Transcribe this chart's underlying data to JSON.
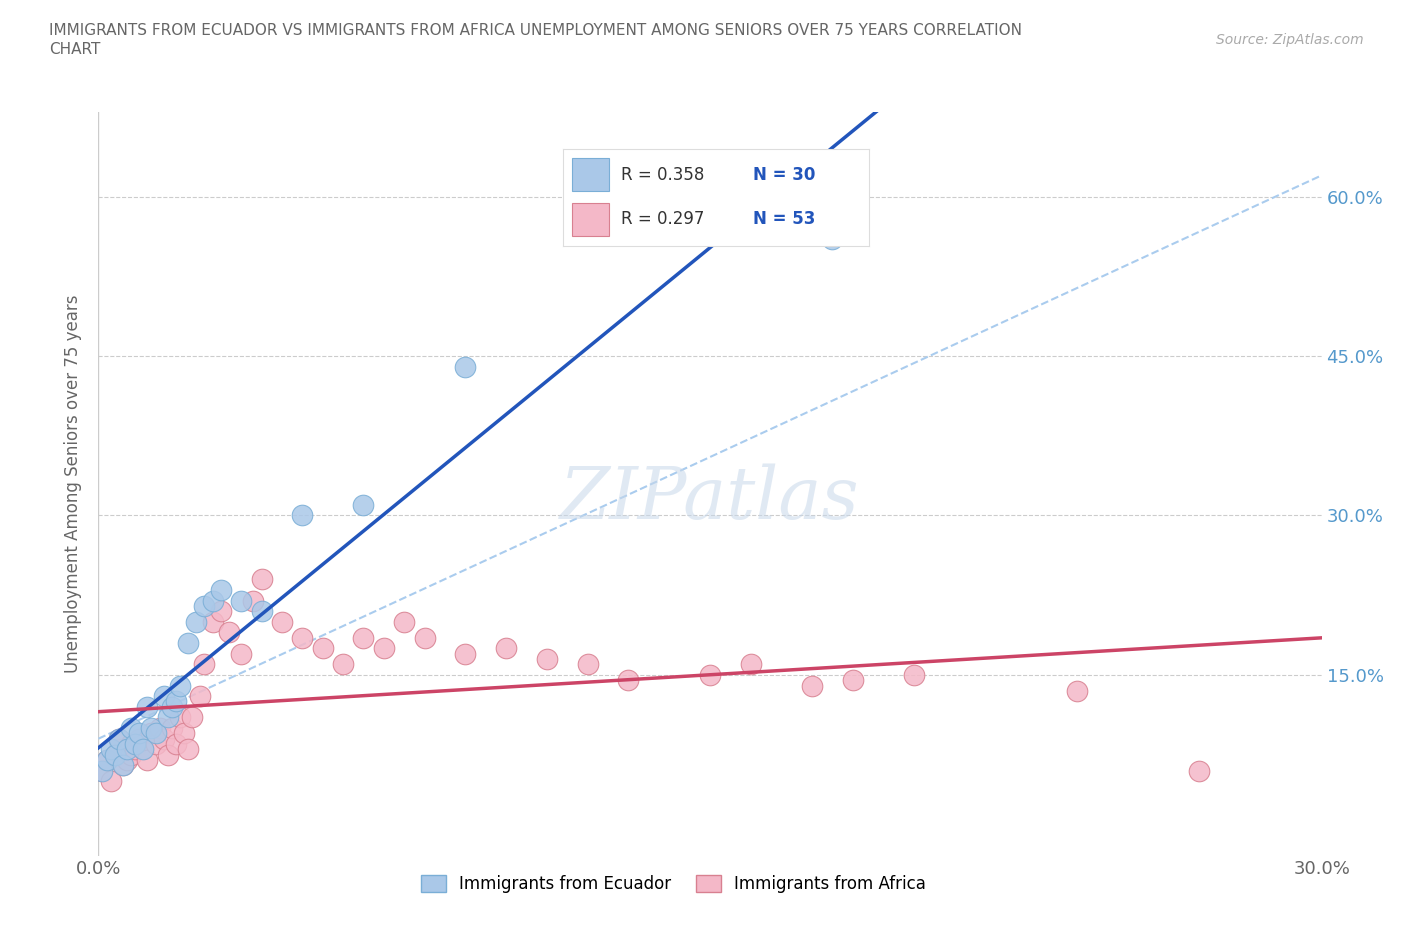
{
  "title": "IMMIGRANTS FROM ECUADOR VS IMMIGRANTS FROM AFRICA UNEMPLOYMENT AMONG SENIORS OVER 75 YEARS CORRELATION\nCHART",
  "source": "Source: ZipAtlas.com",
  "ylabel": "Unemployment Among Seniors over 75 years",
  "xlim": [
    0.0,
    0.3
  ],
  "ylim": [
    0.0,
    0.65
  ],
  "xticks": [
    0.0,
    0.05,
    0.1,
    0.15,
    0.2,
    0.25,
    0.3
  ],
  "xtick_labels": [
    "0.0%",
    "",
    "",
    "",
    "",
    "",
    "30.0%"
  ],
  "yticks": [
    0.0,
    0.15,
    0.3,
    0.45,
    0.6
  ],
  "ytick_labels_right": [
    "",
    "15.0%",
    "30.0%",
    "45.0%",
    "60.0%"
  ],
  "ecuador_color": "#aac8e8",
  "ecuador_edge": "#7aaed6",
  "africa_color": "#f4b8c8",
  "africa_edge": "#d88090",
  "ecuador_R": 0.358,
  "ecuador_N": 30,
  "africa_R": 0.297,
  "africa_N": 53,
  "ecuador_line_color": "#2255bb",
  "africa_line_color": "#cc4466",
  "refline_color": "#aaccee",
  "background_color": "#ffffff",
  "watermark": "ZIPatlas",
  "ecuador_x": [
    0.001,
    0.002,
    0.003,
    0.004,
    0.005,
    0.006,
    0.007,
    0.008,
    0.009,
    0.01,
    0.011,
    0.012,
    0.013,
    0.014,
    0.016,
    0.017,
    0.018,
    0.019,
    0.02,
    0.022,
    0.024,
    0.026,
    0.028,
    0.03,
    0.035,
    0.04,
    0.05,
    0.065,
    0.09,
    0.18
  ],
  "ecuador_y": [
    0.06,
    0.07,
    0.08,
    0.075,
    0.09,
    0.065,
    0.08,
    0.1,
    0.085,
    0.095,
    0.08,
    0.12,
    0.1,
    0.095,
    0.13,
    0.11,
    0.12,
    0.125,
    0.14,
    0.18,
    0.2,
    0.215,
    0.22,
    0.23,
    0.22,
    0.21,
    0.3,
    0.31,
    0.44,
    0.56
  ],
  "africa_x": [
    0.001,
    0.002,
    0.003,
    0.004,
    0.005,
    0.005,
    0.006,
    0.007,
    0.008,
    0.008,
    0.009,
    0.01,
    0.011,
    0.012,
    0.013,
    0.014,
    0.015,
    0.016,
    0.017,
    0.018,
    0.019,
    0.02,
    0.021,
    0.022,
    0.023,
    0.025,
    0.026,
    0.028,
    0.03,
    0.032,
    0.035,
    0.038,
    0.04,
    0.045,
    0.05,
    0.055,
    0.06,
    0.065,
    0.07,
    0.075,
    0.08,
    0.09,
    0.1,
    0.11,
    0.12,
    0.13,
    0.15,
    0.16,
    0.175,
    0.185,
    0.2,
    0.24,
    0.27
  ],
  "africa_y": [
    0.06,
    0.07,
    0.05,
    0.075,
    0.08,
    0.09,
    0.065,
    0.07,
    0.085,
    0.075,
    0.08,
    0.09,
    0.08,
    0.07,
    0.095,
    0.085,
    0.1,
    0.09,
    0.075,
    0.1,
    0.085,
    0.11,
    0.095,
    0.08,
    0.11,
    0.13,
    0.16,
    0.2,
    0.21,
    0.19,
    0.17,
    0.22,
    0.24,
    0.2,
    0.185,
    0.175,
    0.16,
    0.185,
    0.175,
    0.2,
    0.185,
    0.17,
    0.175,
    0.165,
    0.16,
    0.145,
    0.15,
    0.16,
    0.14,
    0.145,
    0.15,
    0.135,
    0.06
  ]
}
